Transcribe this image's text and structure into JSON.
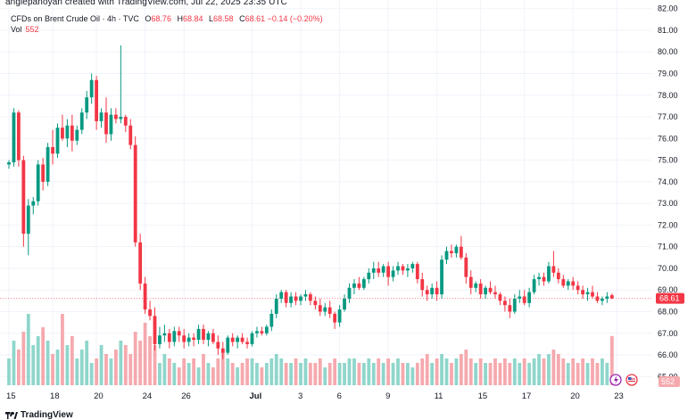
{
  "header": {
    "created_by": "anglepanoyan created with TradingView.com, Jul 22, 2025 23:35 UTC"
  },
  "legend": {
    "symbol": "CFDs on Brent Crude Oil · 4h · TVC",
    "open_label": "O",
    "open": "68.76",
    "high_label": "H",
    "high": "68.84",
    "low_label": "L",
    "low": "68.58",
    "close_label": "C",
    "close": "68.61",
    "change": "−0.14 (−0.20%)",
    "volume_label": "Vol",
    "volume": "552"
  },
  "footer": {
    "brand": "TradingView"
  },
  "colors": {
    "up": "#089981",
    "down": "#f23645",
    "vol_up": "#8fd6cb",
    "vol_down": "#f5a9ae",
    "grid": "#f0f3fa",
    "text": "#131722"
  },
  "chart_data": {
    "type": "candlestick",
    "title": "CFDs on Brent Crude Oil · 4h · TVC",
    "ylim": [
      64.6,
      82.4
    ],
    "y_ticks": [
      "82.00",
      "81.00",
      "80.00",
      "79.00",
      "78.00",
      "77.00",
      "76.00",
      "75.00",
      "74.00",
      "73.00",
      "72.00",
      "71.00",
      "70.00",
      "69.00",
      "68.00",
      "67.00",
      "66.00",
      "65.00"
    ],
    "last_price": "68.61",
    "last_volume": "552",
    "x_tick_labels": [
      {
        "label": "15",
        "i": 0
      },
      {
        "label": "18",
        "i": 9
      },
      {
        "label": "20",
        "i": 18
      },
      {
        "label": "24",
        "i": 28
      },
      {
        "label": "26",
        "i": 36
      },
      {
        "label": "Jul",
        "i": 50
      },
      {
        "label": "3",
        "i": 60
      },
      {
        "label": "6",
        "i": 68
      },
      {
        "label": "9",
        "i": 78
      },
      {
        "label": "11",
        "i": 88
      },
      {
        "label": "15",
        "i": 97
      },
      {
        "label": "17",
        "i": 106
      },
      {
        "label": "20",
        "i": 116
      },
      {
        "label": "23",
        "i": 125
      }
    ],
    "candles": [
      [
        74.8,
        75.0,
        74.6,
        74.9,
        300
      ],
      [
        74.9,
        77.4,
        74.7,
        77.2,
        500
      ],
      [
        77.2,
        77.3,
        74.7,
        75.0,
        400
      ],
      [
        75.0,
        75.2,
        71.0,
        71.6,
        600
      ],
      [
        71.6,
        73.2,
        70.6,
        72.9,
        800
      ],
      [
        72.9,
        73.3,
        72.5,
        73.1,
        450
      ],
      [
        73.1,
        75.0,
        72.9,
        74.8,
        550
      ],
      [
        74.8,
        75.1,
        73.6,
        74.0,
        650
      ],
      [
        74.0,
        75.8,
        73.8,
        75.6,
        500
      ],
      [
        75.6,
        76.4,
        74.8,
        75.3,
        350
      ],
      [
        75.3,
        76.7,
        75.1,
        76.5,
        400
      ],
      [
        76.5,
        77.1,
        75.9,
        76.0,
        800
      ],
      [
        76.0,
        76.9,
        75.6,
        76.6,
        450
      ],
      [
        76.6,
        77.1,
        75.4,
        75.9,
        550
      ],
      [
        75.9,
        76.6,
        75.7,
        76.4,
        300
      ],
      [
        76.4,
        77.4,
        76.2,
        77.2,
        400
      ],
      [
        77.2,
        78.2,
        76.9,
        77.9,
        500
      ],
      [
        77.9,
        79.0,
        77.6,
        78.7,
        250
      ],
      [
        78.7,
        78.9,
        76.4,
        76.8,
        300
      ],
      [
        76.8,
        77.4,
        76.5,
        77.2,
        450
      ],
      [
        77.2,
        77.9,
        75.8,
        76.2,
        350
      ],
      [
        76.2,
        77.4,
        75.9,
        77.1,
        300
      ],
      [
        77.1,
        77.4,
        76.7,
        76.9,
        400
      ],
      [
        76.9,
        80.3,
        76.7,
        77.0,
        500
      ],
      [
        77.0,
        77.1,
        76.3,
        76.6,
        450
      ],
      [
        76.6,
        76.9,
        75.5,
        75.7,
        350
      ],
      [
        75.7,
        76.1,
        71.0,
        71.2,
        600
      ],
      [
        71.2,
        71.6,
        69.0,
        69.3,
        500
      ],
      [
        69.3,
        69.6,
        67.9,
        68.1,
        700
      ],
      [
        68.1,
        68.5,
        67.6,
        67.8,
        550
      ],
      [
        67.8,
        68.2,
        66.2,
        66.5,
        450
      ],
      [
        66.5,
        67.3,
        66.3,
        66.9,
        250
      ],
      [
        66.9,
        67.4,
        66.6,
        67.0,
        350
      ],
      [
        67.0,
        67.2,
        66.3,
        66.6,
        300
      ],
      [
        66.6,
        67.3,
        66.4,
        67.1,
        250
      ],
      [
        67.1,
        67.3,
        66.6,
        66.9,
        200
      ],
      [
        66.9,
        67.2,
        66.3,
        66.6,
        300
      ],
      [
        66.6,
        67.0,
        66.4,
        66.8,
        250
      ],
      [
        66.8,
        67.0,
        66.4,
        66.7,
        300
      ],
      [
        66.7,
        67.4,
        66.5,
        67.2,
        200
      ],
      [
        67.2,
        67.4,
        66.5,
        66.7,
        350
      ],
      [
        66.7,
        67.1,
        66.4,
        67.0,
        250
      ],
      [
        67.0,
        67.2,
        66.5,
        66.6,
        200
      ],
      [
        66.6,
        66.9,
        66.0,
        66.3,
        300
      ],
      [
        66.3,
        66.6,
        65.8,
        66.1,
        400
      ],
      [
        66.1,
        66.9,
        66.0,
        66.8,
        300
      ],
      [
        66.8,
        67.0,
        66.4,
        66.6,
        250
      ],
      [
        66.6,
        66.9,
        66.3,
        66.8,
        200
      ],
      [
        66.8,
        67.0,
        66.5,
        66.6,
        250
      ],
      [
        66.6,
        66.8,
        66.3,
        66.5,
        300
      ],
      [
        66.5,
        67.1,
        66.4,
        67.0,
        300
      ],
      [
        67.0,
        67.3,
        66.8,
        67.1,
        250
      ],
      [
        67.1,
        67.3,
        66.9,
        67.0,
        200
      ],
      [
        67.0,
        67.4,
        66.9,
        67.3,
        250
      ],
      [
        67.3,
        68.1,
        67.1,
        67.9,
        300
      ],
      [
        67.9,
        68.8,
        67.7,
        68.6,
        350
      ],
      [
        68.6,
        69.0,
        68.4,
        68.9,
        300
      ],
      [
        68.9,
        69.0,
        68.2,
        68.4,
        250
      ],
      [
        68.4,
        68.9,
        68.2,
        68.7,
        250
      ],
      [
        68.7,
        68.9,
        68.3,
        68.5,
        300
      ],
      [
        68.5,
        68.8,
        68.3,
        68.7,
        250
      ],
      [
        68.7,
        69.0,
        68.5,
        68.8,
        300
      ],
      [
        68.8,
        68.9,
        68.3,
        68.5,
        250
      ],
      [
        68.5,
        68.7,
        68.1,
        68.3,
        250
      ],
      [
        68.3,
        68.6,
        67.8,
        68.0,
        300
      ],
      [
        68.0,
        68.4,
        67.8,
        68.2,
        200
      ],
      [
        68.2,
        68.5,
        67.7,
        67.9,
        250
      ],
      [
        67.9,
        68.0,
        67.2,
        67.5,
        300
      ],
      [
        67.5,
        68.3,
        67.3,
        68.1,
        250
      ],
      [
        68.1,
        68.8,
        68.0,
        68.6,
        250
      ],
      [
        68.6,
        69.3,
        68.4,
        69.1,
        300
      ],
      [
        69.1,
        69.5,
        68.8,
        69.3,
        300
      ],
      [
        69.3,
        69.6,
        69.0,
        69.1,
        250
      ],
      [
        69.1,
        69.6,
        69.0,
        69.5,
        250
      ],
      [
        69.5,
        70.0,
        69.3,
        69.8,
        300
      ],
      [
        69.8,
        70.3,
        69.5,
        70.0,
        250
      ],
      [
        70.0,
        70.3,
        69.6,
        69.8,
        300
      ],
      [
        69.8,
        70.2,
        69.6,
        70.1,
        250
      ],
      [
        70.1,
        70.3,
        69.2,
        69.6,
        300
      ],
      [
        69.6,
        70.1,
        69.4,
        69.9,
        250
      ],
      [
        69.9,
        70.3,
        69.7,
        70.1,
        300
      ],
      [
        70.1,
        70.2,
        69.7,
        69.9,
        250
      ],
      [
        69.9,
        70.2,
        69.6,
        70.0,
        250
      ],
      [
        70.0,
        70.3,
        69.8,
        70.2,
        200
      ],
      [
        70.2,
        70.3,
        69.3,
        69.5,
        250
      ],
      [
        69.5,
        69.8,
        68.7,
        69.0,
        300
      ],
      [
        69.0,
        69.2,
        68.5,
        68.8,
        350
      ],
      [
        68.8,
        69.3,
        68.6,
        69.1,
        250
      ],
      [
        69.1,
        69.4,
        68.5,
        68.8,
        300
      ],
      [
        68.8,
        70.6,
        68.6,
        70.4,
        350
      ],
      [
        70.4,
        71.0,
        70.2,
        70.8,
        300
      ],
      [
        70.8,
        71.1,
        70.5,
        70.7,
        250
      ],
      [
        70.7,
        71.1,
        70.5,
        71.0,
        300
      ],
      [
        71.0,
        71.5,
        70.4,
        70.5,
        350
      ],
      [
        70.5,
        70.7,
        69.3,
        69.6,
        400
      ],
      [
        69.6,
        69.9,
        68.8,
        69.1,
        300
      ],
      [
        69.1,
        69.4,
        68.9,
        69.3,
        250
      ],
      [
        69.3,
        69.5,
        68.6,
        68.8,
        300
      ],
      [
        68.8,
        69.2,
        68.6,
        69.1,
        250
      ],
      [
        69.1,
        69.4,
        68.8,
        68.9,
        250
      ],
      [
        68.9,
        69.2,
        68.6,
        68.8,
        300
      ],
      [
        68.8,
        68.9,
        68.3,
        68.5,
        250
      ],
      [
        68.5,
        68.7,
        68.0,
        68.3,
        300
      ],
      [
        68.3,
        68.6,
        67.7,
        68.0,
        250
      ],
      [
        68.0,
        68.8,
        67.9,
        68.6,
        300
      ],
      [
        68.6,
        69.0,
        68.4,
        68.7,
        250
      ],
      [
        68.7,
        69.0,
        68.3,
        68.4,
        300
      ],
      [
        68.4,
        69.1,
        68.2,
        68.9,
        250
      ],
      [
        68.9,
        69.7,
        68.8,
        69.5,
        300
      ],
      [
        69.5,
        69.8,
        69.2,
        69.6,
        350
      ],
      [
        69.6,
        69.8,
        69.2,
        69.4,
        300
      ],
      [
        69.4,
        70.3,
        69.3,
        70.1,
        350
      ],
      [
        70.1,
        70.8,
        69.6,
        69.8,
        400
      ],
      [
        69.8,
        70.0,
        69.3,
        69.5,
        350
      ],
      [
        69.5,
        69.7,
        69.1,
        69.2,
        300
      ],
      [
        69.2,
        69.5,
        69.0,
        69.4,
        250
      ],
      [
        69.4,
        69.6,
        69.0,
        69.2,
        300
      ],
      [
        69.2,
        69.4,
        68.8,
        69.0,
        250
      ],
      [
        69.0,
        69.2,
        68.6,
        68.8,
        300
      ],
      [
        68.8,
        69.1,
        68.5,
        68.9,
        250
      ],
      [
        68.9,
        69.2,
        68.6,
        68.7,
        300
      ],
      [
        68.7,
        68.9,
        68.4,
        68.5,
        250
      ],
      [
        68.5,
        68.7,
        68.3,
        68.6,
        300
      ],
      [
        68.6,
        68.9,
        68.4,
        68.7,
        250
      ],
      [
        68.76,
        68.84,
        68.58,
        68.61,
        552
      ]
    ]
  }
}
